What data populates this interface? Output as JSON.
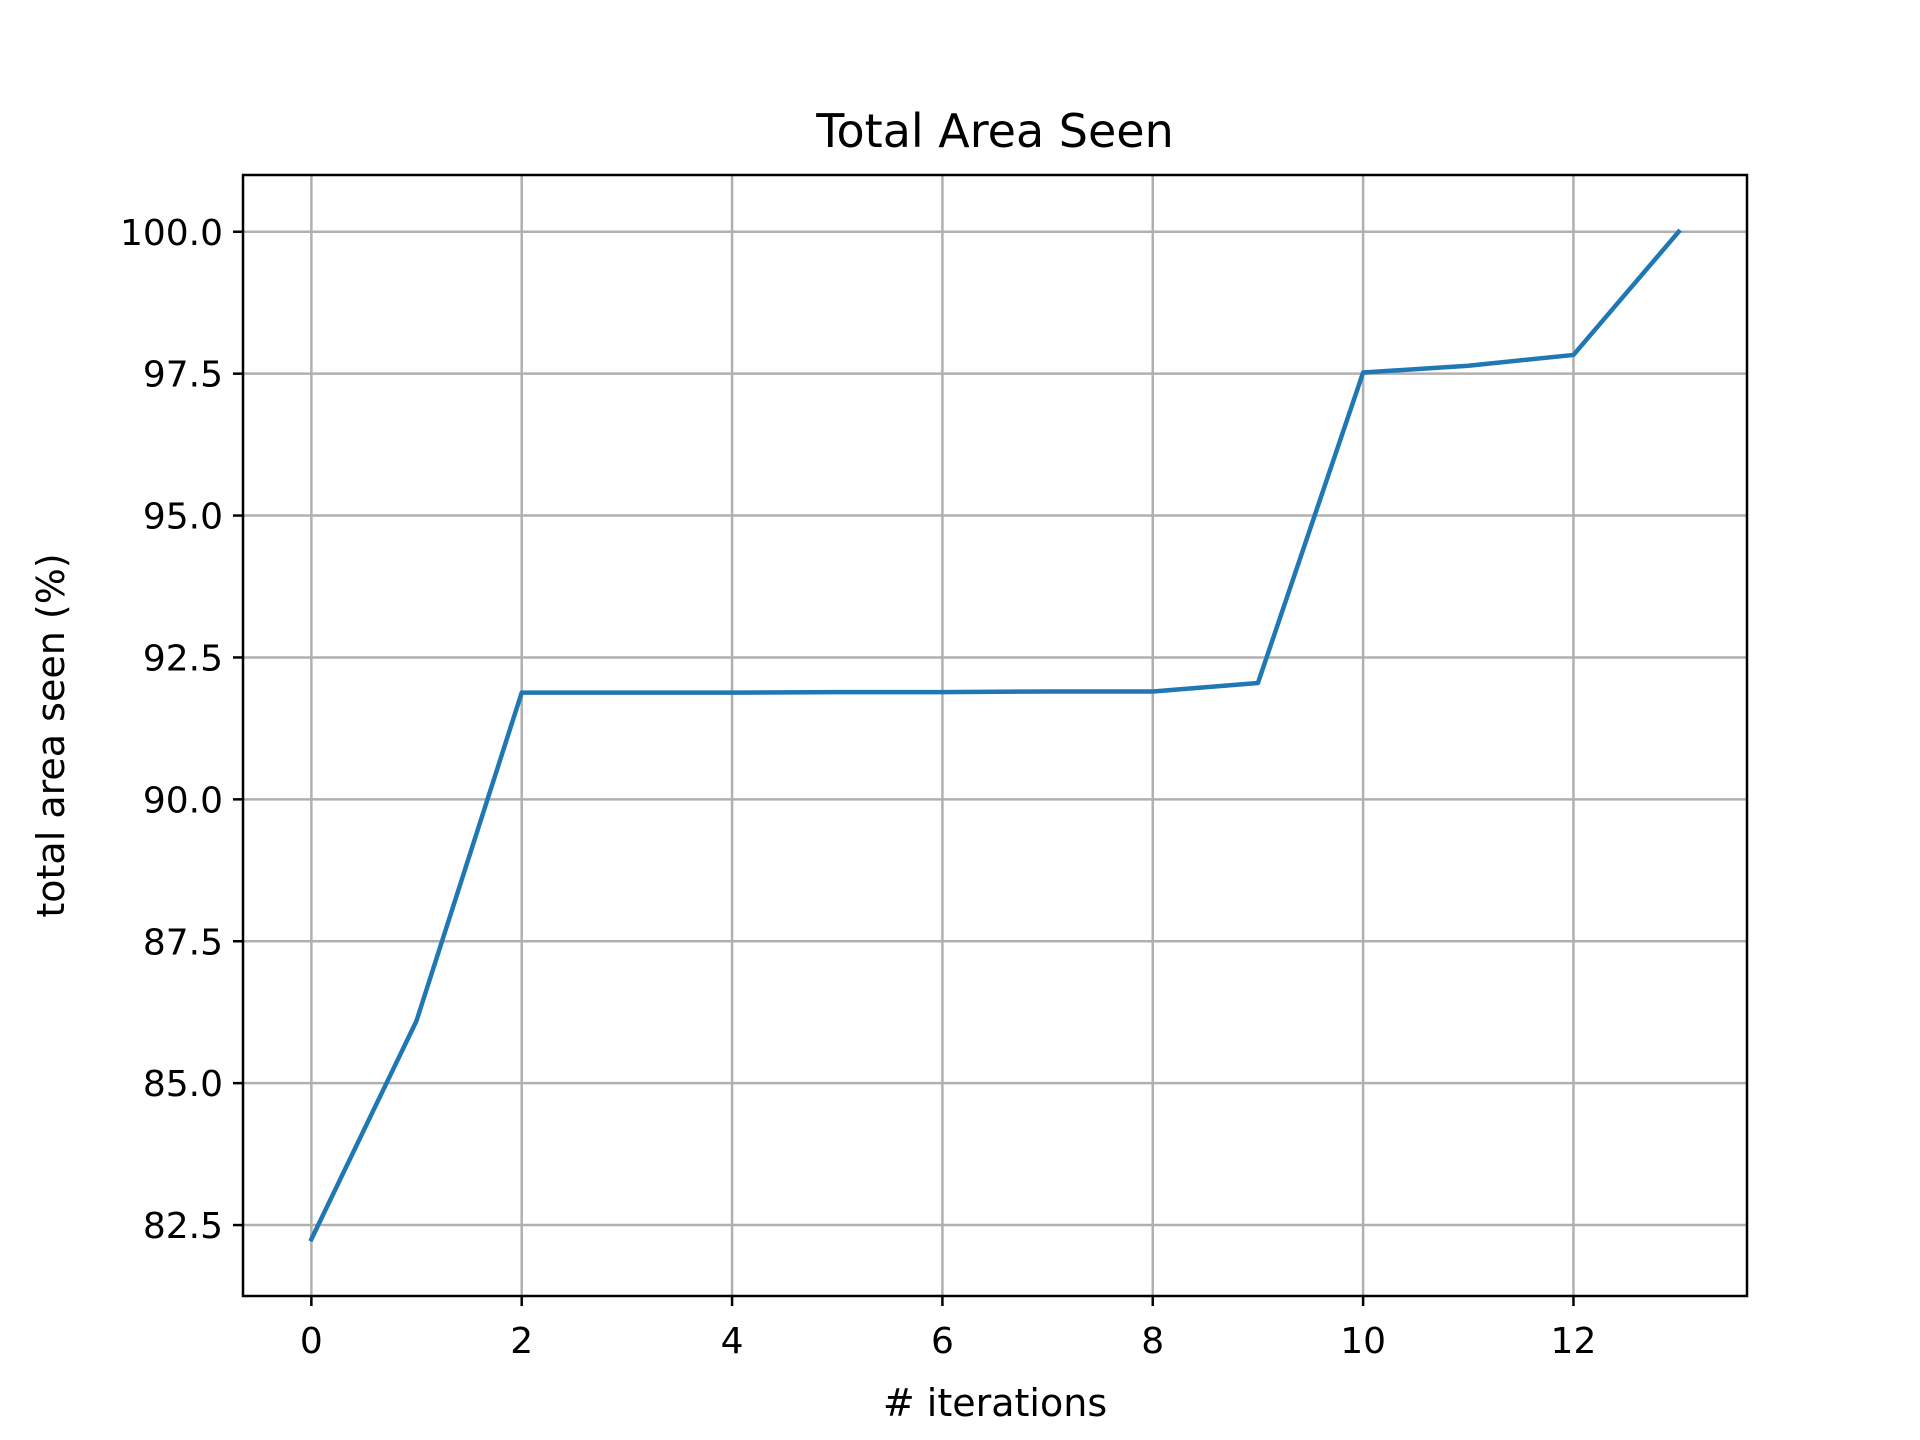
{
  "chart_data": {
    "type": "line",
    "title": "Total Area Seen",
    "xlabel": "# iterations",
    "ylabel": "total area seen (%)",
    "x": [
      0,
      1,
      2,
      3,
      4,
      5,
      6,
      7,
      8,
      9,
      10,
      11,
      12,
      13
    ],
    "series": [
      {
        "values": [
          82.25,
          86.1,
          91.88,
          91.88,
          91.88,
          91.89,
          91.89,
          91.9,
          91.9,
          92.05,
          97.52,
          97.64,
          97.83,
          100.0
        ],
        "color": "#1f77b4"
      }
    ],
    "xlim": [
      -0.65,
      13.65
    ],
    "ylim": [
      81.25,
      101.0
    ],
    "xticks": [
      0,
      2,
      4,
      6,
      8,
      10,
      12
    ],
    "xtick_labels": [
      "0",
      "2",
      "4",
      "6",
      "8",
      "10",
      "12"
    ],
    "yticks": [
      82.5,
      85.0,
      87.5,
      90.0,
      92.5,
      95.0,
      97.5,
      100.0
    ],
    "ytick_labels": [
      "82.5",
      "85.0",
      "87.5",
      "90.0",
      "92.5",
      "95.0",
      "97.5",
      "100.0"
    ],
    "grid": true,
    "legend": "none"
  }
}
